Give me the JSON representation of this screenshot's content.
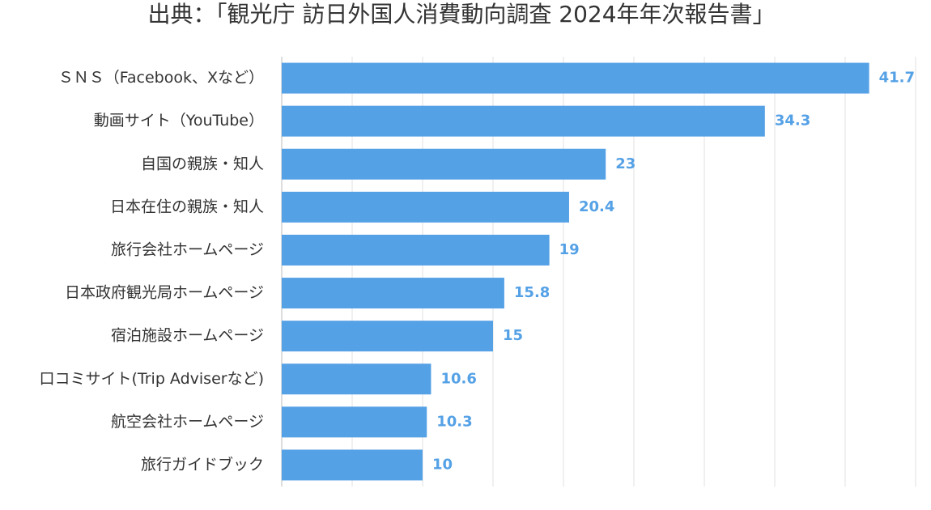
{
  "chart_data": {
    "type": "bar",
    "orientation": "horizontal",
    "title": "出典：「観光庁 訪日外国人消費動向調査 2024年年次報告書」",
    "categories": [
      "ＳＮＳ（Facebook、Xなど）",
      "動画サイト（YouTube）",
      "自国の親族・知人",
      "日本在住の親族・知人",
      "旅行会社ホームページ",
      "日本政府観光局ホームページ",
      "宿泊施設ホームページ",
      "口コミサイト(Trip Adviserなど)",
      "航空会社ホームページ",
      "旅行ガイドブック"
    ],
    "values": [
      41.7,
      34.3,
      23,
      20.4,
      19,
      15.8,
      15,
      10.6,
      10.3,
      10
    ],
    "color": "#55a1e6",
    "xlim": [
      0,
      45
    ],
    "xticks": [
      0,
      5,
      10,
      15,
      20,
      25,
      30,
      35,
      40,
      45
    ],
    "grid": true
  }
}
